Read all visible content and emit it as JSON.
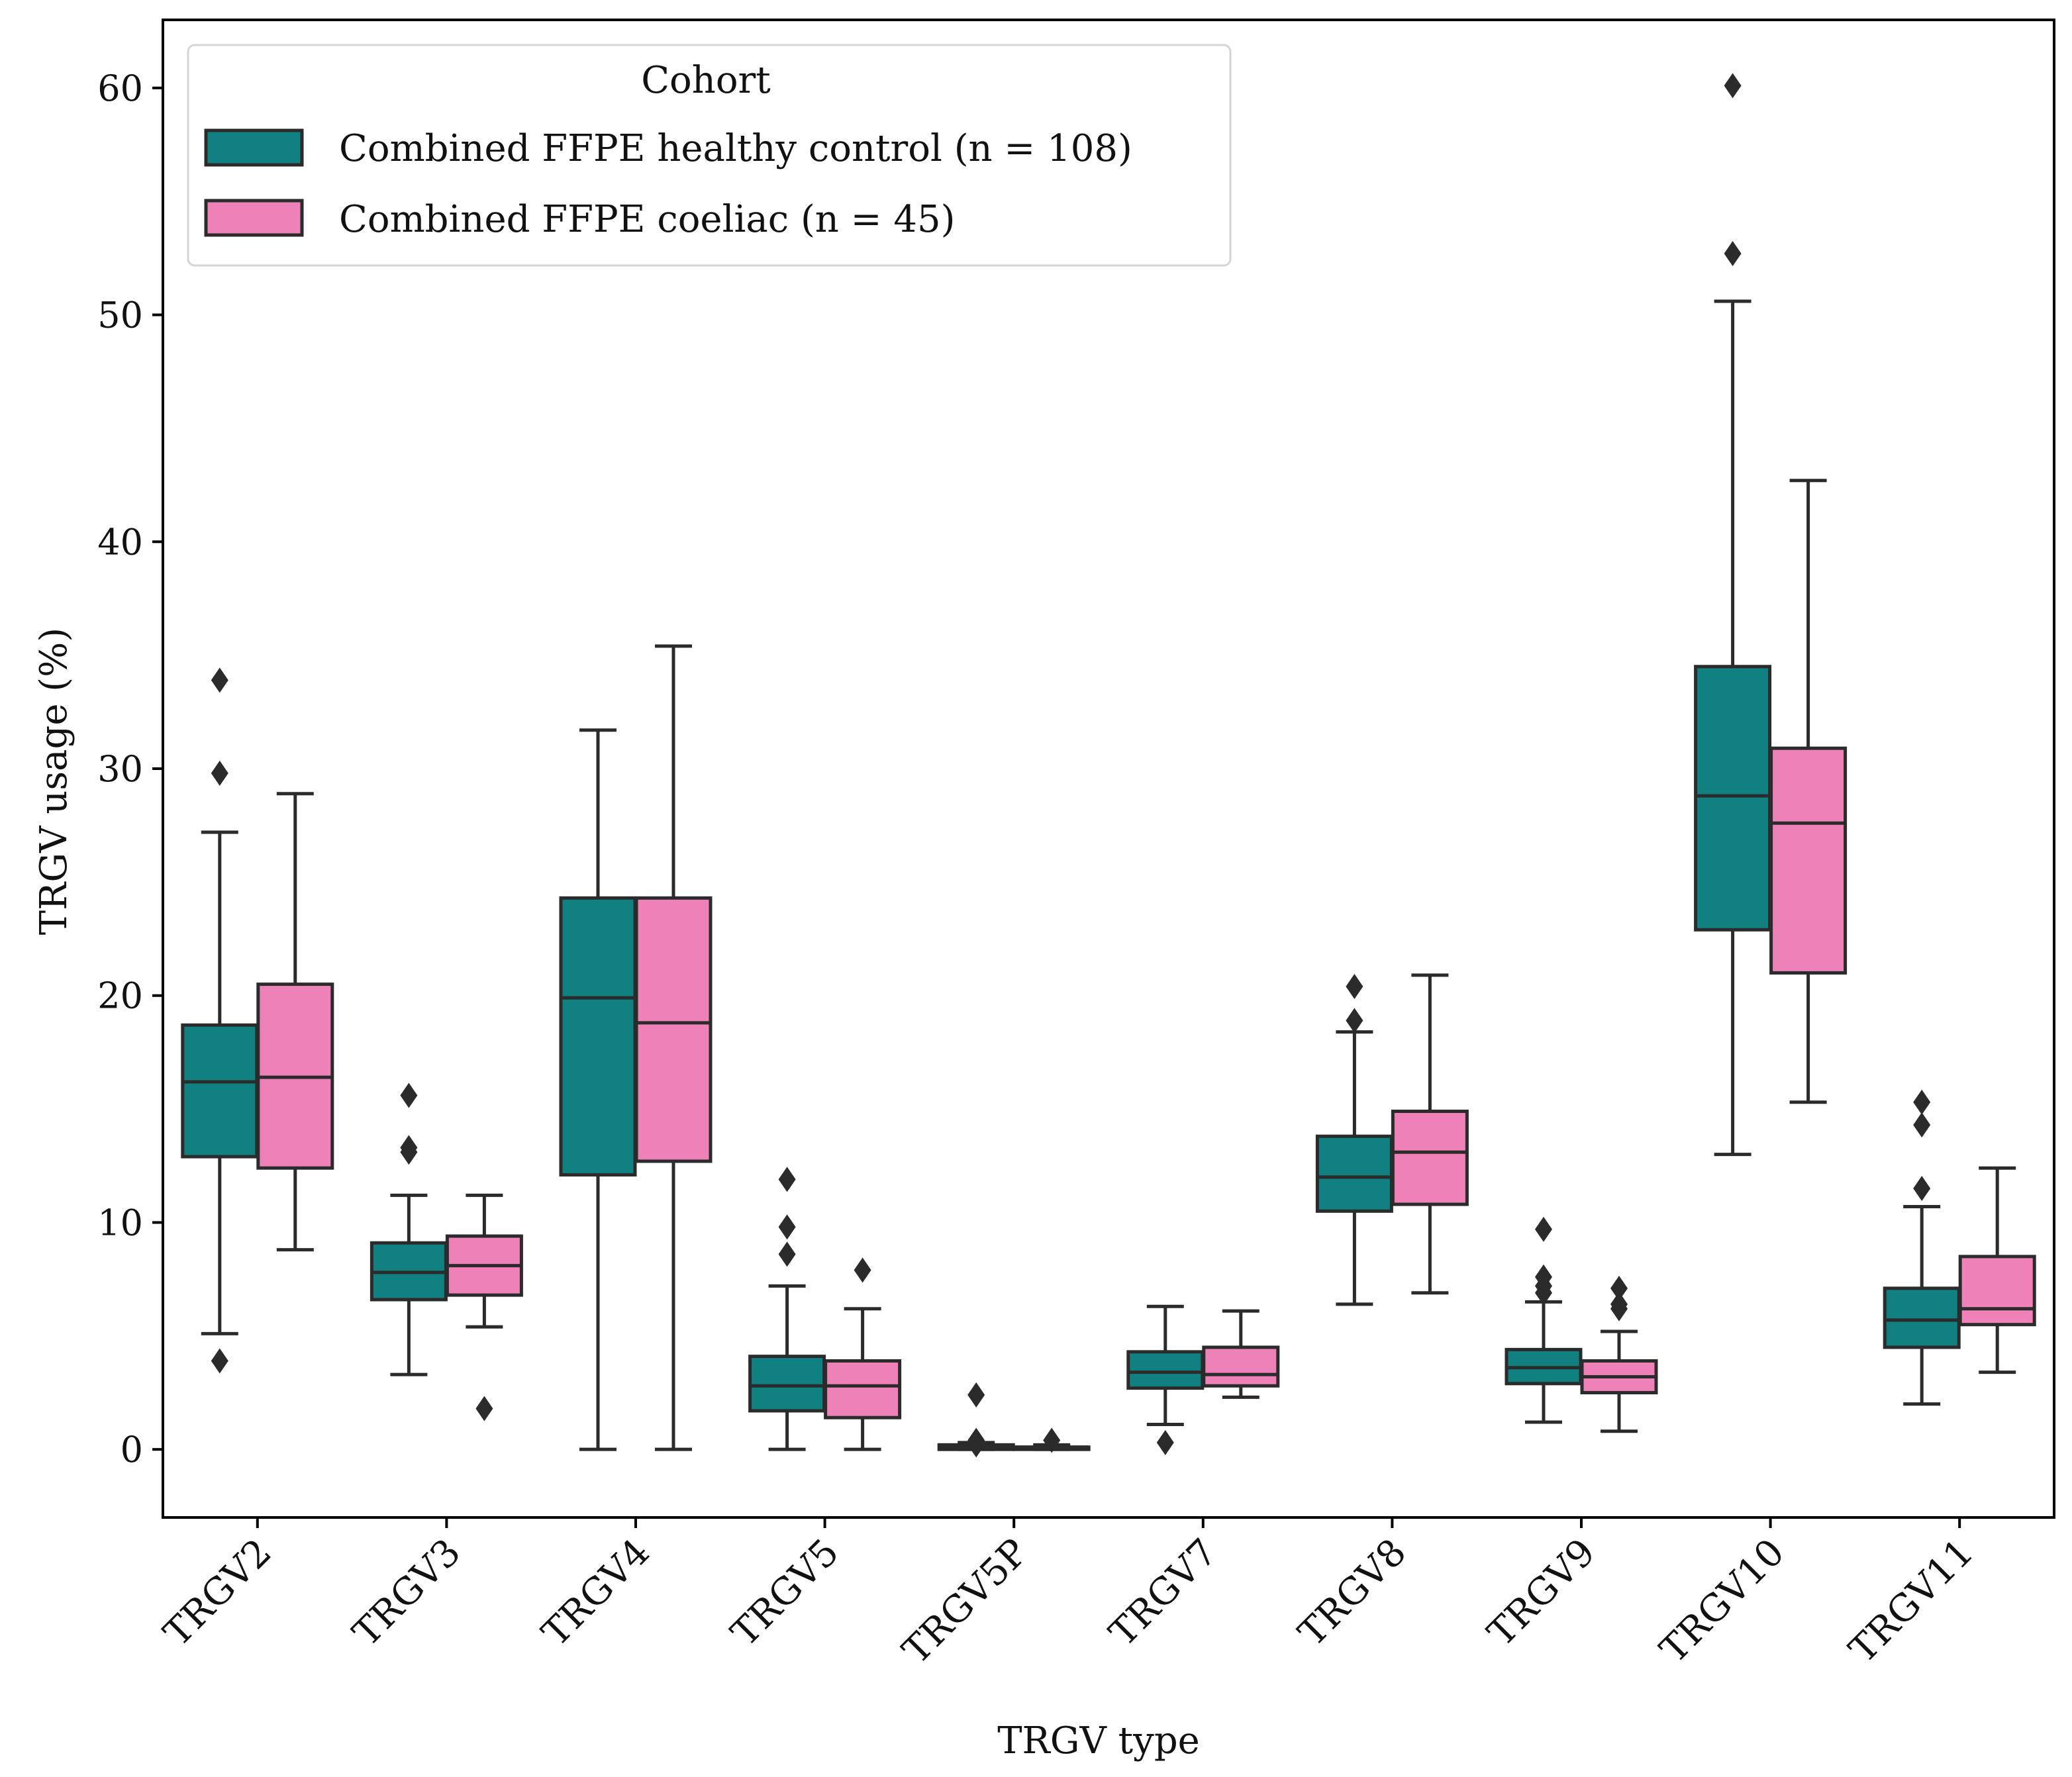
{
  "chart_data": {
    "type": "box",
    "title": "",
    "xlabel": "TRGV type",
    "ylabel": "TRGV usage (%)",
    "ylim": [
      -3,
      63
    ],
    "yticks": [
      0,
      10,
      20,
      30,
      40,
      50,
      60
    ],
    "grid": false,
    "legend": {
      "title": "Cohort",
      "placement": "top-left"
    },
    "categories": [
      "TRGV2",
      "TRGV3",
      "TRGV4",
      "TRGV5",
      "TRGV5P",
      "TRGV7",
      "TRGV8",
      "TRGV9",
      "TRGV10",
      "TRGV11"
    ],
    "series": [
      {
        "name": "Combined FFPE healthy control (n = 108)",
        "color": "#118080",
        "boxes": [
          {
            "whislo": 5.1,
            "q1": 12.9,
            "med": 16.2,
            "q3": 18.7,
            "whishi": 27.2,
            "fliers": [
              3.9,
              29.8,
              33.9
            ]
          },
          {
            "whislo": 3.3,
            "q1": 6.6,
            "med": 7.8,
            "q3": 9.1,
            "whishi": 11.2,
            "fliers": [
              13.1,
              13.3,
              15.6
            ]
          },
          {
            "whislo": 0.0,
            "q1": 12.1,
            "med": 19.9,
            "q3": 24.3,
            "whishi": 31.7,
            "fliers": []
          },
          {
            "whislo": 0.0,
            "q1": 1.7,
            "med": 2.8,
            "q3": 4.1,
            "whishi": 7.2,
            "fliers": [
              8.6,
              9.8,
              11.9
            ]
          },
          {
            "whislo": 0.0,
            "q1": 0.0,
            "med": 0.1,
            "q3": 0.2,
            "whishi": 0.3,
            "fliers": [
              0.2,
              0.4,
              2.4
            ]
          },
          {
            "whislo": 1.1,
            "q1": 2.7,
            "med": 3.4,
            "q3": 4.3,
            "whishi": 6.3,
            "fliers": [
              0.3
            ]
          },
          {
            "whislo": 6.4,
            "q1": 10.5,
            "med": 12.0,
            "q3": 13.8,
            "whishi": 18.4,
            "fliers": [
              18.9,
              20.4
            ]
          },
          {
            "whislo": 1.2,
            "q1": 2.9,
            "med": 3.6,
            "q3": 4.4,
            "whishi": 6.5,
            "fliers": [
              6.9,
              7.2,
              7.6,
              9.7
            ]
          },
          {
            "whislo": 13.0,
            "q1": 22.9,
            "med": 28.8,
            "q3": 34.5,
            "whishi": 50.6,
            "fliers": [
              52.7,
              60.1
            ]
          },
          {
            "whislo": 2.0,
            "q1": 4.5,
            "med": 5.7,
            "q3": 7.1,
            "whishi": 10.7,
            "fliers": [
              11.5,
              14.3,
              15.3
            ]
          }
        ]
      },
      {
        "name": "Combined FFPE coeliac (n = 45)",
        "color": "#ee82b8",
        "boxes": [
          {
            "whislo": 8.8,
            "q1": 12.4,
            "med": 16.4,
            "q3": 20.5,
            "whishi": 28.9,
            "fliers": []
          },
          {
            "whislo": 5.4,
            "q1": 6.8,
            "med": 8.1,
            "q3": 9.4,
            "whishi": 11.2,
            "fliers": [
              1.8
            ]
          },
          {
            "whislo": 0.0,
            "q1": 12.7,
            "med": 18.8,
            "q3": 24.3,
            "whishi": 35.4,
            "fliers": []
          },
          {
            "whislo": 0.0,
            "q1": 1.4,
            "med": 2.8,
            "q3": 3.9,
            "whishi": 6.2,
            "fliers": [
              7.9
            ]
          },
          {
            "whislo": 0.0,
            "q1": 0.0,
            "med": 0.1,
            "q3": 0.1,
            "whishi": 0.2,
            "fliers": [
              0.4
            ]
          },
          {
            "whislo": 2.3,
            "q1": 2.8,
            "med": 3.3,
            "q3": 4.5,
            "whishi": 6.1,
            "fliers": []
          },
          {
            "whislo": 6.9,
            "q1": 10.8,
            "med": 13.1,
            "q3": 14.9,
            "whishi": 20.9,
            "fliers": []
          },
          {
            "whislo": 0.8,
            "q1": 2.5,
            "med": 3.2,
            "q3": 3.9,
            "whishi": 5.2,
            "fliers": [
              6.2,
              6.4,
              7.1
            ]
          },
          {
            "whislo": 15.3,
            "q1": 21.0,
            "med": 27.6,
            "q3": 30.9,
            "whishi": 42.7,
            "fliers": []
          },
          {
            "whislo": 3.4,
            "q1": 5.5,
            "med": 6.2,
            "q3": 8.5,
            "whishi": 12.4,
            "fliers": []
          }
        ]
      }
    ]
  }
}
